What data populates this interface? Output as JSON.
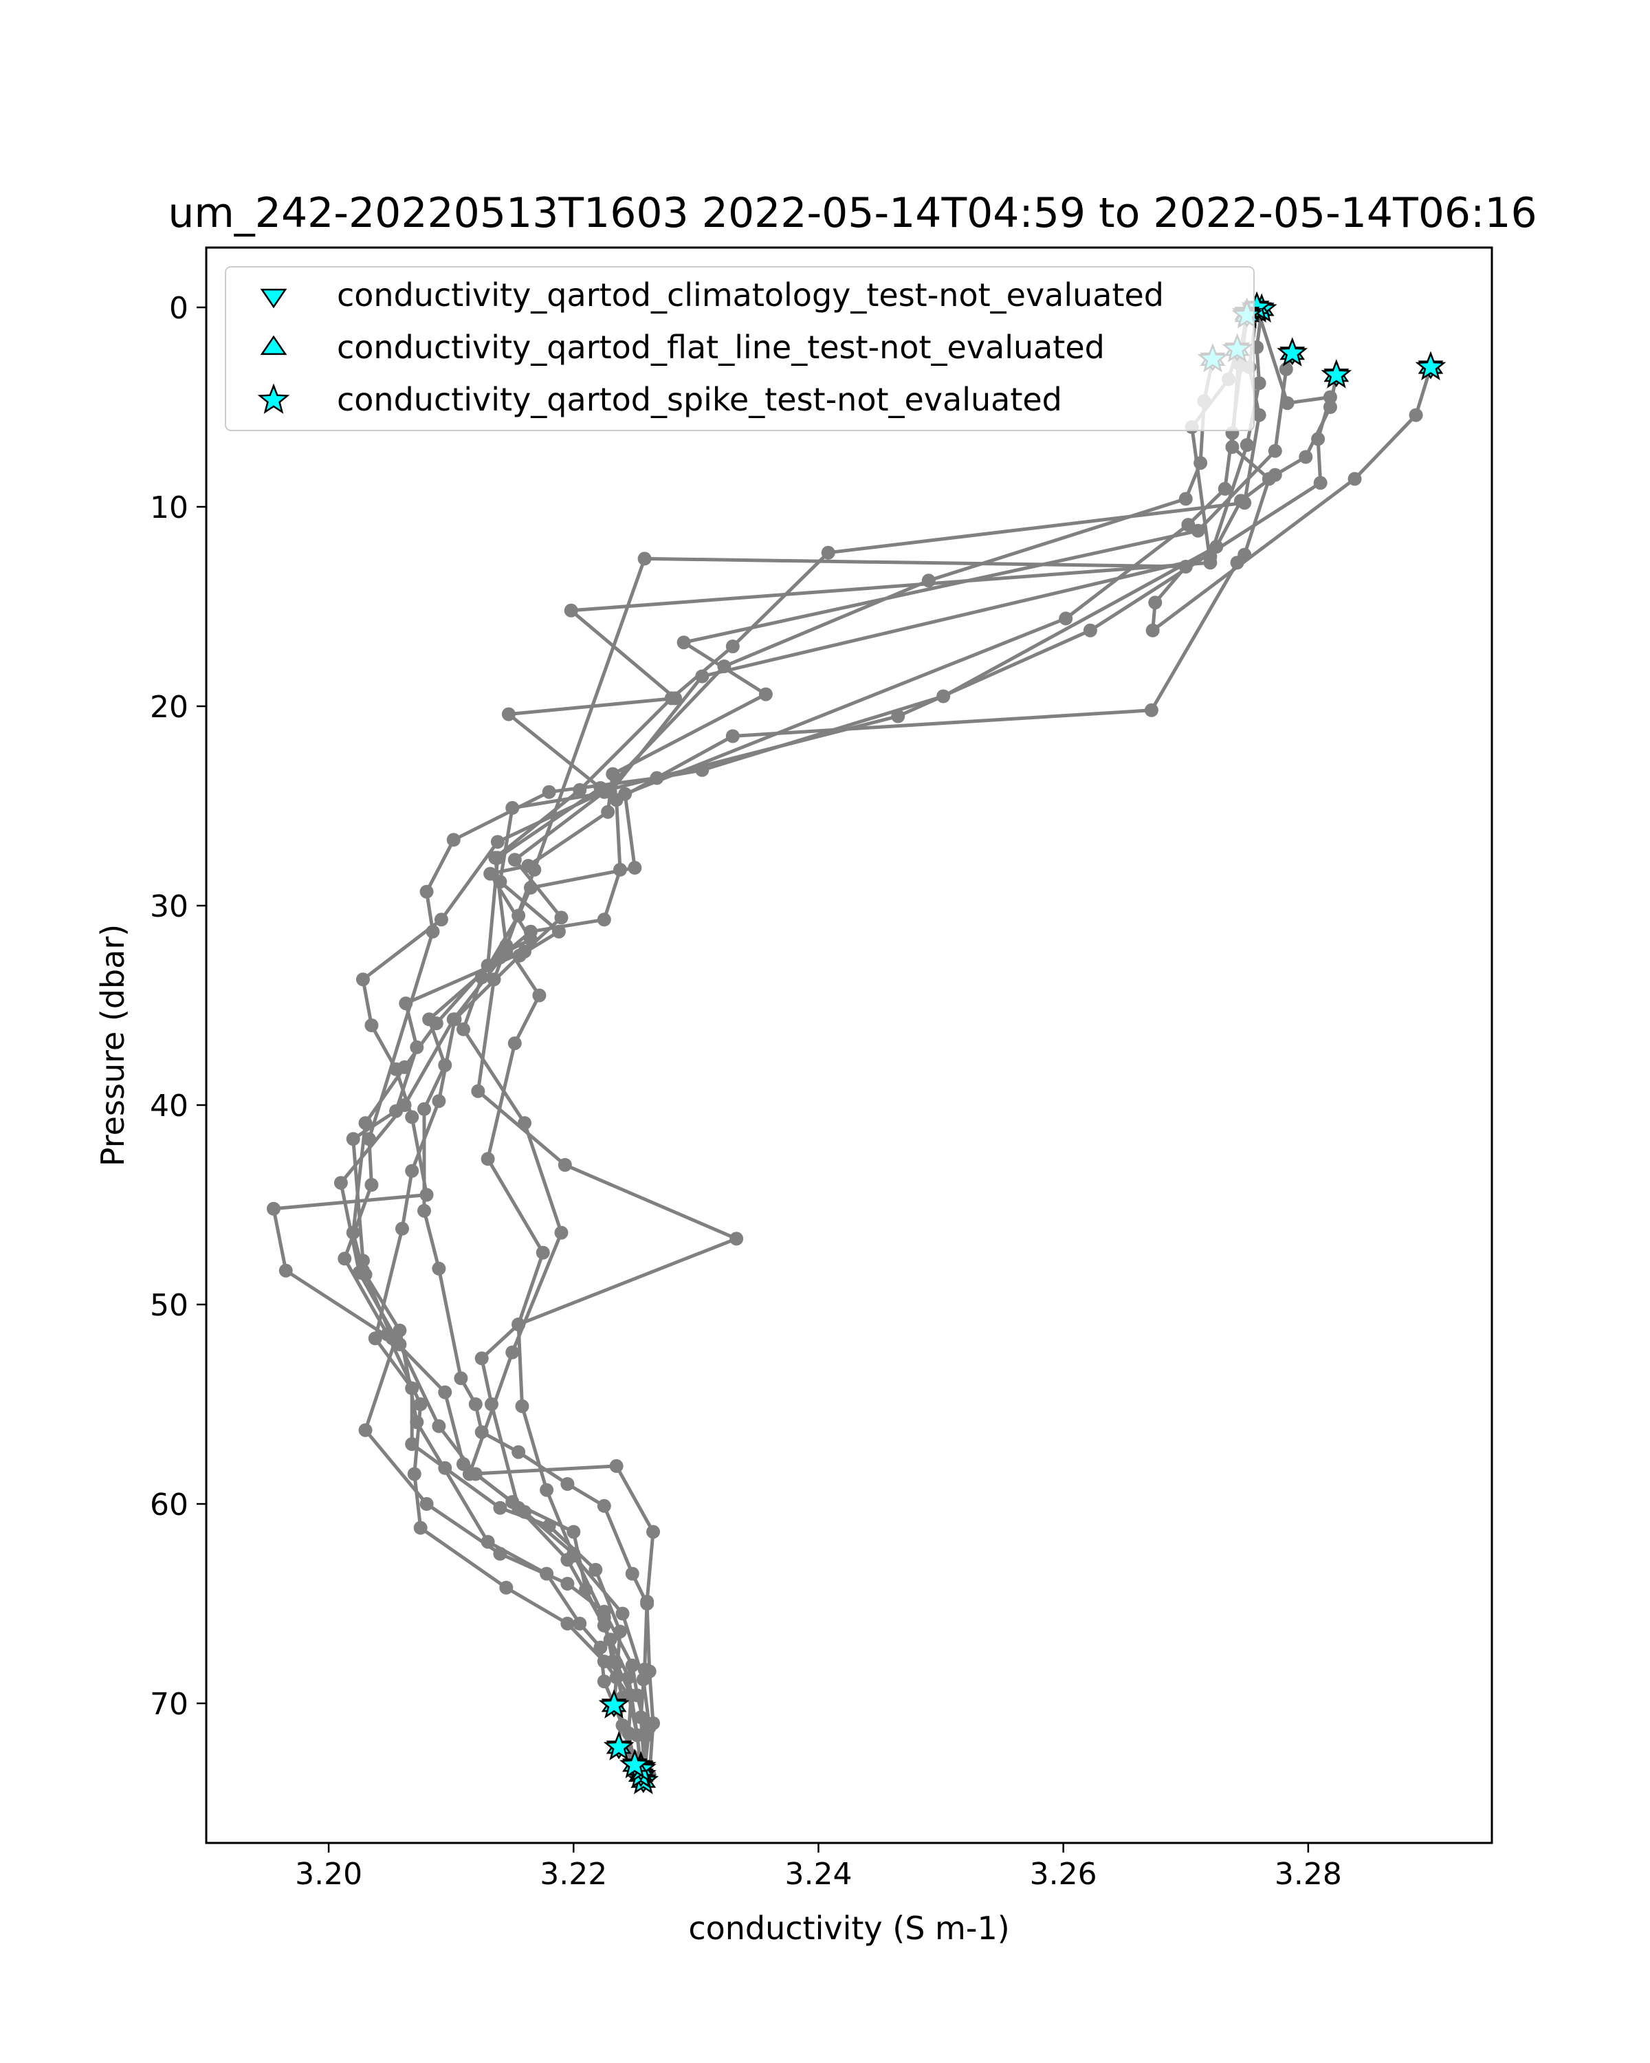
{
  "chart_data": {
    "type": "line",
    "title": "um_242-20220513T1603 2022-05-14T04:59 to 2022-05-14T06:16",
    "xlabel": "conductivity (S m-1)",
    "ylabel": "Pressure (dbar)",
    "xlim": [
      3.19,
      3.295
    ],
    "ylim": [
      77,
      -3
    ],
    "y_inverted": true,
    "grid": false,
    "x_ticks": [
      {
        "value": 3.2,
        "label": "3.20"
      },
      {
        "value": 3.22,
        "label": "3.22"
      },
      {
        "value": 3.24,
        "label": "3.24"
      },
      {
        "value": 3.26,
        "label": "3.26"
      },
      {
        "value": 3.28,
        "label": "3.28"
      }
    ],
    "y_ticks": [
      {
        "value": 0,
        "label": "0"
      },
      {
        "value": 10,
        "label": "10"
      },
      {
        "value": 20,
        "label": "20"
      },
      {
        "value": 30,
        "label": "30"
      },
      {
        "value": 40,
        "label": "40"
      },
      {
        "value": 50,
        "label": "50"
      },
      {
        "value": 60,
        "label": "60"
      },
      {
        "value": 70,
        "label": "70"
      }
    ],
    "legend": {
      "placement": "upper-left",
      "entries": [
        {
          "label": "conductivity_qartod_climatology_test-not_evaluated",
          "marker": "triangle-down",
          "color": "#00ffff"
        },
        {
          "label": "conductivity_qartod_flat_line_test-not_evaluated",
          "marker": "triangle-up",
          "color": "#00ffff"
        },
        {
          "label": "conductivity_qartod_spike_test-not_evaluated",
          "marker": "star",
          "color": "#00ffff"
        }
      ]
    },
    "line_color": "#808080",
    "flag_color": "#00ffff",
    "profiles": [
      {
        "points": [
          [
            3.2758,
            0.1
          ],
          [
            3.2752,
            3.0
          ],
          [
            3.276,
            5.4
          ],
          [
            3.2748,
            9.8
          ],
          [
            3.2408,
            12.3
          ],
          [
            3.233,
            17.0
          ],
          [
            3.228,
            19.6
          ],
          [
            3.2205,
            24.2
          ],
          [
            3.2136,
            27.6
          ],
          [
            3.2145,
            32.0
          ],
          [
            3.2172,
            34.5
          ],
          [
            3.2152,
            36.9
          ],
          [
            3.213,
            42.7
          ],
          [
            3.2175,
            47.4
          ],
          [
            3.2155,
            51.0
          ],
          [
            3.2158,
            55.1
          ],
          [
            3.2178,
            59.3
          ],
          [
            3.22,
            62.6
          ],
          [
            3.224,
            65.5
          ],
          [
            3.2257,
            68.8
          ],
          [
            3.2262,
            71.2
          ],
          [
            3.2257,
            73.9
          ]
        ],
        "flags": [
          0,
          21
        ]
      },
      {
        "points": [
          [
            3.2762,
            0.1
          ],
          [
            3.2758,
            2.0
          ],
          [
            3.276,
            3.8
          ],
          [
            3.275,
            6.9
          ],
          [
            3.272,
            12.5
          ],
          [
            3.2305,
            18.5
          ],
          [
            3.223,
            24.3
          ],
          [
            3.215,
            25.1
          ],
          [
            3.214,
            28.8
          ],
          [
            3.2188,
            31.3
          ],
          [
            3.2156,
            32.5
          ],
          [
            3.2103,
            35.7
          ],
          [
            3.209,
            39.8
          ],
          [
            3.2068,
            43.3
          ],
          [
            3.206,
            46.2
          ],
          [
            3.2038,
            51.7
          ],
          [
            3.2068,
            54.2
          ],
          [
            3.2068,
            57.0
          ],
          [
            3.2095,
            58.2
          ],
          [
            3.214,
            60.2
          ],
          [
            3.218,
            61.1
          ],
          [
            3.2218,
            63.3
          ],
          [
            3.2238,
            66.4
          ],
          [
            3.2235,
            68.7
          ],
          [
            3.2233,
            70.1
          ]
        ],
        "flags": [
          0,
          24
        ]
      },
      {
        "points": [
          [
            3.2722,
            2.6
          ],
          [
            3.2715,
            4.7
          ],
          [
            3.2712,
            7.8
          ],
          [
            3.27,
            9.6
          ],
          [
            3.249,
            13.7
          ],
          [
            3.2323,
            18.0
          ],
          [
            3.2225,
            24.3
          ],
          [
            3.2152,
            27.7
          ],
          [
            3.219,
            30.6
          ],
          [
            3.216,
            32.3
          ],
          [
            3.2063,
            34.9
          ],
          [
            3.2072,
            37.1
          ],
          [
            3.2055,
            40.3
          ],
          [
            3.202,
            41.7
          ],
          [
            3.2028,
            47.8
          ],
          [
            3.203,
            48.5
          ],
          [
            3.2052,
            51.7
          ],
          [
            3.2095,
            54.4
          ],
          [
            3.211,
            58.0
          ],
          [
            3.216,
            60.4
          ],
          [
            3.22,
            62.5
          ],
          [
            3.2225,
            65.7
          ],
          [
            3.2232,
            67.9
          ],
          [
            3.224,
            69.7
          ],
          [
            3.2237,
            72.2
          ]
        ],
        "flags": [
          0,
          24
        ]
      },
      {
        "points": [
          [
            3.2742,
            2.1
          ],
          [
            3.2735,
            3.6
          ],
          [
            3.2705,
            6.0
          ],
          [
            3.272,
            12.8
          ],
          [
            3.2198,
            15.2
          ],
          [
            3.2283,
            19.6
          ],
          [
            3.2147,
            20.4
          ],
          [
            3.2222,
            24.1
          ],
          [
            3.2138,
            27.6
          ],
          [
            3.213,
            33.0
          ],
          [
            3.2088,
            35.9
          ],
          [
            3.2062,
            38.1
          ],
          [
            3.203,
            40.9
          ],
          [
            3.202,
            46.4
          ],
          [
            3.2028,
            48.3
          ],
          [
            3.2058,
            51.3
          ],
          [
            3.2072,
            55.9
          ],
          [
            3.213,
            61.9
          ],
          [
            3.2178,
            63.5
          ],
          [
            3.2205,
            66.0
          ],
          [
            3.2222,
            67.2
          ],
          [
            3.2225,
            68.9
          ],
          [
            3.224,
            71.1
          ],
          [
            3.2247,
            72.6
          ],
          [
            3.2255,
            73.6
          ]
        ],
        "flags": [
          0,
          24
        ]
      },
      {
        "points": [
          [
            3.2787,
            2.3
          ],
          [
            3.2782,
            3.1
          ],
          [
            3.2773,
            7.2
          ],
          [
            3.271,
            11.2
          ],
          [
            3.229,
            16.8
          ],
          [
            3.2357,
            19.4
          ],
          [
            3.2232,
            23.4
          ],
          [
            3.2228,
            25.3
          ],
          [
            3.2163,
            28.0
          ],
          [
            3.2132,
            28.4
          ],
          [
            3.2165,
            31.7
          ],
          [
            3.2145,
            32.3
          ],
          [
            3.2102,
            35.7
          ],
          [
            3.2062,
            40.0
          ],
          [
            3.201,
            43.9
          ],
          [
            3.2025,
            48.4
          ],
          [
            3.2055,
            51.7
          ],
          [
            3.203,
            56.3
          ],
          [
            3.208,
            60.0
          ],
          [
            3.214,
            62.5
          ],
          [
            3.2195,
            64.0
          ],
          [
            3.2225,
            65.4
          ],
          [
            3.2248,
            68.1
          ],
          [
            3.2252,
            69.6
          ],
          [
            3.226,
            71.6
          ],
          [
            3.2255,
            73.2
          ]
        ],
        "flags": [
          0,
          25
        ]
      },
      {
        "points": [
          [
            3.2823,
            3.4
          ],
          [
            3.2818,
            5.0
          ],
          [
            3.2798,
            7.5
          ],
          [
            3.2773,
            8.4
          ],
          [
            3.2745,
            9.7
          ],
          [
            3.2725,
            12.0
          ],
          [
            3.2502,
            19.5
          ],
          [
            3.2305,
            23.2
          ],
          [
            3.2268,
            23.6
          ],
          [
            3.218,
            24.3
          ],
          [
            3.2102,
            26.7
          ],
          [
            3.208,
            29.3
          ],
          [
            3.2085,
            31.3
          ],
          [
            3.2033,
            41.7
          ],
          [
            3.2035,
            44.0
          ],
          [
            3.2013,
            47.7
          ],
          [
            3.2048,
            51.5
          ],
          [
            3.2075,
            55.0
          ],
          [
            3.207,
            58.5
          ],
          [
            3.2075,
            61.2
          ],
          [
            3.2145,
            64.2
          ],
          [
            3.2195,
            66.0
          ],
          [
            3.2225,
            67.9
          ],
          [
            3.2245,
            69.6
          ],
          [
            3.2252,
            71.6
          ],
          [
            3.2255,
            73.3
          ]
        ],
        "flags": [
          0,
          25
        ]
      },
      {
        "points": [
          [
            3.29,
            3.0
          ],
          [
            3.2888,
            5.4
          ],
          [
            3.2838,
            8.6
          ],
          [
            3.2673,
            16.2
          ],
          [
            3.2675,
            14.8
          ],
          [
            3.27,
            13.0
          ],
          [
            3.2258,
            12.6
          ],
          [
            3.2168,
            28.2
          ],
          [
            3.2143,
            32.4
          ],
          [
            3.2135,
            33.7
          ],
          [
            3.2122,
            39.3
          ],
          [
            3.2193,
            43.0
          ],
          [
            3.2333,
            46.7
          ],
          [
            3.2155,
            51.0
          ],
          [
            3.2125,
            52.7
          ],
          [
            3.2133,
            55.0
          ],
          [
            3.2155,
            60.2
          ],
          [
            3.2195,
            62.8
          ],
          [
            3.2225,
            66.1
          ],
          [
            3.2235,
            68.0
          ],
          [
            3.2247,
            69.6
          ],
          [
            3.2245,
            71.5
          ],
          [
            3.225,
            73.1
          ]
        ],
        "flags": [
          0,
          22
        ]
      },
      {
        "points": [
          [
            3.2758,
            0.0
          ],
          [
            3.2783,
            4.8
          ],
          [
            3.2818,
            4.5
          ],
          [
            3.2808,
            6.6
          ],
          [
            3.281,
            8.8
          ],
          [
            3.2622,
            16.2
          ],
          [
            3.2465,
            20.5
          ],
          [
            3.2228,
            24.2
          ],
          [
            3.2138,
            26.8
          ],
          [
            3.2092,
            30.7
          ],
          [
            3.2028,
            33.7
          ],
          [
            3.2035,
            36.0
          ],
          [
            3.2055,
            38.2
          ],
          [
            3.2068,
            40.6
          ],
          [
            3.208,
            44.5
          ],
          [
            3.1955,
            45.2
          ],
          [
            3.1965,
            48.3
          ],
          [
            3.2058,
            52.0
          ],
          [
            3.209,
            56.1
          ],
          [
            3.212,
            58.5
          ],
          [
            3.215,
            59.9
          ],
          [
            3.22,
            61.4
          ],
          [
            3.221,
            64.3
          ],
          [
            3.223,
            66.8
          ],
          [
            3.2245,
            68.7
          ],
          [
            3.2252,
            71.6
          ],
          [
            3.2255,
            73.2
          ]
        ],
        "flags": [
          0
        ]
      },
      {
        "points": [
          [
            3.275,
            0.3
          ],
          [
            3.2743,
            2.8
          ],
          [
            3.2738,
            7.0
          ],
          [
            3.2768,
            8.6
          ],
          [
            3.2748,
            12.4
          ],
          [
            3.2742,
            12.8
          ],
          [
            3.2672,
            20.2
          ],
          [
            3.233,
            21.5
          ],
          [
            3.2235,
            24.7
          ],
          [
            3.2238,
            28.2
          ],
          [
            3.2225,
            30.7
          ],
          [
            3.2165,
            31.3
          ],
          [
            3.214,
            32.6
          ],
          [
            3.2082,
            35.7
          ],
          [
            3.2095,
            38.0
          ],
          [
            3.2078,
            40.2
          ],
          [
            3.2078,
            45.3
          ],
          [
            3.209,
            48.2
          ],
          [
            3.2108,
            53.7
          ],
          [
            3.212,
            55.0
          ],
          [
            3.2125,
            56.4
          ],
          [
            3.2155,
            57.4
          ],
          [
            3.2195,
            59.0
          ],
          [
            3.2225,
            60.1
          ],
          [
            3.2248,
            63.5
          ],
          [
            3.226,
            65.0
          ],
          [
            3.2262,
            68.4
          ],
          [
            3.2265,
            71.0
          ],
          [
            3.2262,
            73.6
          ]
        ],
        "flags": [
          0
        ]
      },
      {
        "points": [
          [
            3.275,
            0.4
          ],
          [
            3.2745,
            2.9
          ],
          [
            3.2738,
            6.3
          ],
          [
            3.2732,
            9.1
          ],
          [
            3.2702,
            10.9
          ],
          [
            3.2602,
            15.6
          ],
          [
            3.2242,
            24.4
          ],
          [
            3.225,
            28.1
          ],
          [
            3.2165,
            29.1
          ],
          [
            3.2155,
            30.5
          ],
          [
            3.2125,
            33.6
          ],
          [
            3.211,
            36.2
          ],
          [
            3.216,
            40.9
          ],
          [
            3.219,
            46.4
          ],
          [
            3.215,
            52.4
          ],
          [
            3.2115,
            58.5
          ],
          [
            3.2235,
            58.1
          ],
          [
            3.2265,
            61.4
          ],
          [
            3.226,
            64.9
          ],
          [
            3.2258,
            68.3
          ],
          [
            3.2255,
            70.7
          ],
          [
            3.2258,
            73.4
          ]
        ],
        "flags": [
          0
        ]
      }
    ]
  }
}
